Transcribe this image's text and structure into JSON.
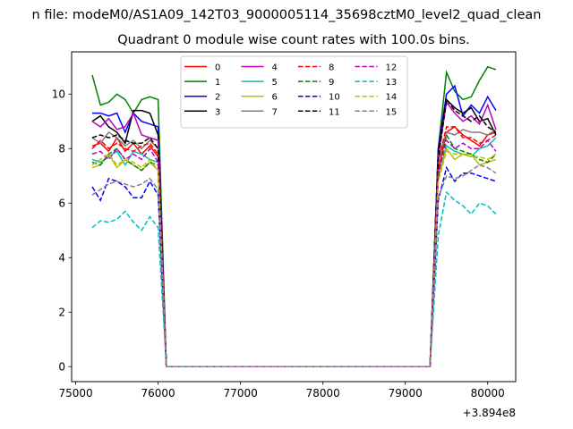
{
  "figure_title": "n file: modeM0/AS1A09_142T03_9000005114_35698cztM0_level2_quad_clean",
  "chart_data": {
    "type": "line",
    "title": "Quadrant 0 module wise count rates with 100.0s bins.",
    "xlabel": "",
    "ylabel": "",
    "x_offset_label": "+3.894e8",
    "xlim": [
      74950,
      80340
    ],
    "ylim": [
      -0.55,
      11.55
    ],
    "xticks": [
      75000,
      76000,
      77000,
      78000,
      79000,
      80000
    ],
    "xtick_labels": [
      "75000",
      "76000",
      "77000",
      "78000",
      "79000",
      "80000"
    ],
    "yticks": [
      0,
      2,
      4,
      6,
      8,
      10
    ],
    "ytick_labels": [
      "0",
      "2",
      "4",
      "6",
      "8",
      "10"
    ],
    "grid": false,
    "legend": {
      "placement": "top-center",
      "columns": 4
    },
    "x": [
      75200,
      75300,
      75400,
      75500,
      75600,
      75700,
      75800,
      75900,
      76000,
      76100,
      76200,
      76300,
      76400,
      76500,
      76600,
      76700,
      76800,
      76900,
      77000,
      77100,
      77200,
      77300,
      77400,
      77500,
      77600,
      77700,
      77800,
      77900,
      78000,
      78100,
      78200,
      78300,
      78400,
      78500,
      78600,
      78700,
      78800,
      78900,
      79000,
      79100,
      79200,
      79300,
      79400,
      79500,
      79600,
      79700,
      79800,
      79900,
      80000,
      80100
    ],
    "series": [
      {
        "name": "0",
        "color": "#ff0000",
        "dash": "solid",
        "pre": [
          8.1,
          8.2,
          7.9,
          8.4,
          7.9,
          8.2,
          7.8,
          8.1,
          7.7
        ],
        "post": [
          7.2,
          8.6,
          8.8,
          8.5,
          8.3,
          8.1,
          8.5,
          8.6
        ]
      },
      {
        "name": "1",
        "color": "#008000",
        "dash": "solid",
        "pre": [
          10.7,
          9.6,
          9.7,
          10.0,
          9.8,
          9.3,
          9.8,
          9.9,
          9.8
        ],
        "post": [
          8.0,
          10.8,
          10.1,
          9.8,
          9.9,
          10.5,
          11.0,
          10.9
        ]
      },
      {
        "name": "2",
        "color": "#0000ff",
        "dash": "solid",
        "pre": [
          9.3,
          9.3,
          9.2,
          9.3,
          8.6,
          9.3,
          9.0,
          8.9,
          8.8
        ],
        "post": [
          8.0,
          10.0,
          10.3,
          9.2,
          9.6,
          9.3,
          9.9,
          9.4
        ]
      },
      {
        "name": "3",
        "color": "#000000",
        "dash": "solid",
        "pre": [
          9.0,
          9.2,
          8.8,
          8.6,
          8.2,
          9.4,
          9.4,
          9.3,
          8.5
        ],
        "post": [
          7.9,
          9.8,
          9.5,
          9.3,
          9.5,
          9.0,
          9.1,
          8.5
        ]
      },
      {
        "name": "4",
        "color": "#bf00bf",
        "dash": "solid",
        "pre": [
          9.0,
          8.8,
          9.1,
          8.7,
          8.8,
          9.3,
          8.5,
          8.4,
          8.3
        ],
        "post": [
          7.7,
          9.7,
          9.3,
          9.0,
          9.2,
          8.9,
          9.6,
          8.7
        ]
      },
      {
        "name": "5",
        "color": "#00bfbf",
        "dash": "solid",
        "pre": [
          7.6,
          7.5,
          7.7,
          7.9,
          7.4,
          7.9,
          7.8,
          7.6,
          7.5
        ],
        "post": [
          7.0,
          8.1,
          7.9,
          7.8,
          7.7,
          8.0,
          8.1,
          8.4
        ]
      },
      {
        "name": "6",
        "color": "#bfbf00",
        "dash": "solid",
        "pre": [
          7.3,
          7.4,
          7.8,
          7.3,
          7.6,
          7.4,
          7.2,
          7.5,
          7.2
        ],
        "post": [
          6.9,
          8.0,
          7.6,
          7.8,
          7.8,
          7.4,
          7.5,
          7.6
        ]
      },
      {
        "name": "7",
        "color": "#808080",
        "dash": "solid",
        "pre": [
          8.4,
          8.2,
          8.6,
          8.4,
          8.1,
          8.3,
          8.0,
          8.3,
          8.0
        ],
        "post": [
          7.6,
          8.6,
          8.5,
          8.7,
          8.6,
          8.6,
          8.5,
          8.7
        ]
      },
      {
        "name": "8",
        "color": "#ff0000",
        "dash": "dashed",
        "pre": [
          8.0,
          8.3,
          8.0,
          8.2,
          8.0,
          7.9,
          8.1,
          8.2,
          7.8
        ],
        "post": [
          7.5,
          8.8,
          8.8,
          8.4,
          8.4,
          8.2,
          8.3,
          8.5
        ]
      },
      {
        "name": "9",
        "color": "#008000",
        "dash": "dashed",
        "pre": [
          7.5,
          7.4,
          7.8,
          8.0,
          7.6,
          7.4,
          7.2,
          7.5,
          7.4
        ],
        "post": [
          7.0,
          8.5,
          8.0,
          7.9,
          7.8,
          7.6,
          7.5,
          7.8
        ]
      },
      {
        "name": "10",
        "color": "#0000ff",
        "dash": "dashed",
        "pre": [
          6.6,
          6.1,
          6.9,
          6.8,
          6.6,
          6.2,
          6.2,
          6.8,
          6.3
        ],
        "post": [
          6.1,
          7.3,
          6.8,
          7.1,
          7.1,
          7.0,
          6.9,
          6.8
        ]
      },
      {
        "name": "11",
        "color": "#000000",
        "dash": "dashed",
        "pre": [
          8.4,
          8.5,
          8.4,
          8.5,
          8.3,
          8.2,
          8.2,
          8.4,
          8.0
        ],
        "post": [
          7.6,
          9.8,
          9.4,
          9.2,
          9.0,
          9.2,
          8.8,
          8.6
        ]
      },
      {
        "name": "12",
        "color": "#bf00bf",
        "dash": "dashed",
        "pre": [
          7.8,
          7.9,
          7.6,
          8.0,
          7.6,
          7.8,
          7.6,
          8.0,
          7.5
        ],
        "post": [
          7.1,
          8.3,
          8.0,
          8.2,
          8.0,
          8.0,
          8.3,
          7.9
        ]
      },
      {
        "name": "13",
        "color": "#00bfbf",
        "dash": "dashed",
        "pre": [
          5.1,
          5.35,
          5.3,
          5.4,
          5.7,
          5.3,
          5.0,
          5.5,
          5.1
        ],
        "post": [
          4.8,
          6.4,
          6.1,
          5.9,
          5.6,
          6.0,
          5.9,
          5.6
        ]
      },
      {
        "name": "14",
        "color": "#bfbf00",
        "dash": "dashed",
        "pre": [
          7.4,
          7.6,
          7.8,
          7.4,
          7.6,
          7.5,
          7.3,
          7.6,
          7.2
        ],
        "post": [
          6.8,
          7.9,
          7.8,
          7.8,
          7.7,
          7.7,
          7.6,
          7.8
        ]
      },
      {
        "name": "15",
        "color": "#808080",
        "dash": "dashed",
        "pre": [
          6.3,
          6.5,
          6.7,
          6.8,
          6.7,
          6.6,
          6.7,
          6.9,
          6.5
        ],
        "post": [
          6.2,
          7.0,
          6.9,
          7.0,
          7.2,
          7.4,
          7.3,
          7.1
        ]
      }
    ]
  }
}
